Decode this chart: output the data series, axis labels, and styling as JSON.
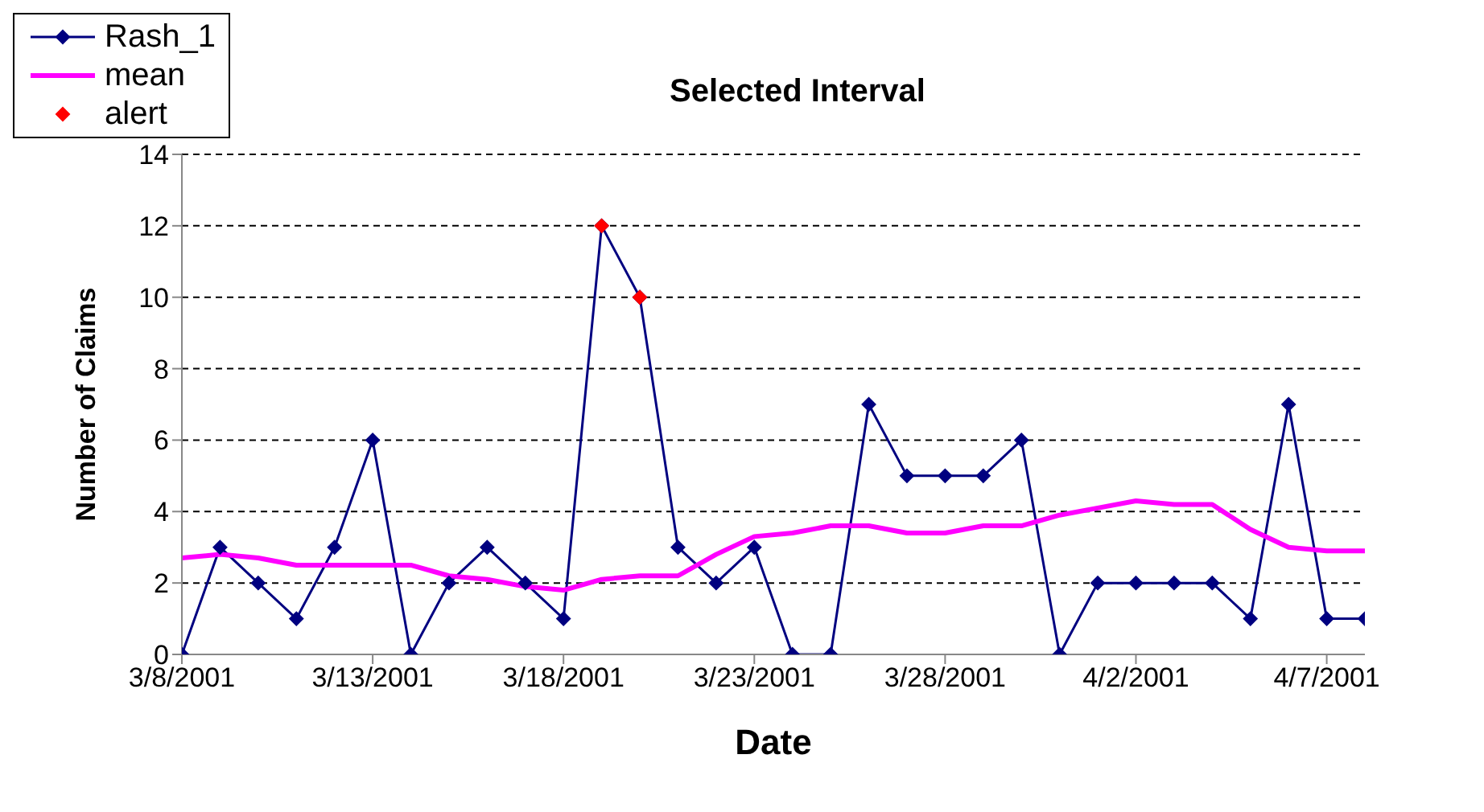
{
  "chart_data": {
    "type": "line",
    "title": "Selected Interval",
    "xlabel": "Date",
    "ylabel": "Number of Claims",
    "xlim": [
      "2001-03-08",
      "2001-04-08"
    ],
    "xticks": [
      {
        "value": "2001-03-08",
        "label": "3/8/2001"
      },
      {
        "value": "2001-03-13",
        "label": "3/13/2001"
      },
      {
        "value": "2001-03-18",
        "label": "3/18/2001"
      },
      {
        "value": "2001-03-23",
        "label": "3/23/2001"
      },
      {
        "value": "2001-03-28",
        "label": "3/28/2001"
      },
      {
        "value": "2001-04-02",
        "label": "4/2/2001"
      },
      {
        "value": "2001-04-07",
        "label": "4/7/2001"
      }
    ],
    "ylim": [
      0,
      14
    ],
    "yticks": [
      0,
      2,
      4,
      6,
      8,
      10,
      12,
      14
    ],
    "grid": "y",
    "legend": "top left",
    "series": [
      {
        "name": "Rash_1",
        "color": "#000080",
        "marker": "diamond",
        "x": [
          "2001-03-08",
          "2001-03-09",
          "2001-03-10",
          "2001-03-11",
          "2001-03-12",
          "2001-03-13",
          "2001-03-14",
          "2001-03-15",
          "2001-03-16",
          "2001-03-17",
          "2001-03-18",
          "2001-03-19",
          "2001-03-20",
          "2001-03-21",
          "2001-03-22",
          "2001-03-23",
          "2001-03-24",
          "2001-03-25",
          "2001-03-26",
          "2001-03-27",
          "2001-03-28",
          "2001-03-29",
          "2001-03-30",
          "2001-03-31",
          "2001-04-01",
          "2001-04-02",
          "2001-04-03",
          "2001-04-04",
          "2001-04-05",
          "2001-04-06",
          "2001-04-07",
          "2001-04-08"
        ],
        "values": [
          0,
          3,
          2,
          1,
          3,
          6,
          0,
          2,
          3,
          2,
          1,
          12,
          10,
          3,
          2,
          3,
          0,
          0,
          7,
          5,
          5,
          5,
          6,
          0,
          2,
          2,
          2,
          2,
          1,
          7,
          1,
          1
        ]
      },
      {
        "name": "mean",
        "color": "#ff00ff",
        "marker": "none",
        "x": [
          "2001-03-08",
          "2001-03-09",
          "2001-03-10",
          "2001-03-11",
          "2001-03-12",
          "2001-03-13",
          "2001-03-14",
          "2001-03-15",
          "2001-03-16",
          "2001-03-17",
          "2001-03-18",
          "2001-03-19",
          "2001-03-20",
          "2001-03-21",
          "2001-03-22",
          "2001-03-23",
          "2001-03-24",
          "2001-03-25",
          "2001-03-26",
          "2001-03-27",
          "2001-03-28",
          "2001-03-29",
          "2001-03-30",
          "2001-03-31",
          "2001-04-01",
          "2001-04-02",
          "2001-04-03",
          "2001-04-04",
          "2001-04-05",
          "2001-04-06",
          "2001-04-07",
          "2001-04-08"
        ],
        "values": [
          2.7,
          2.8,
          2.7,
          2.5,
          2.5,
          2.5,
          2.5,
          2.2,
          2.1,
          1.9,
          1.8,
          2.1,
          2.2,
          2.2,
          2.8,
          3.3,
          3.4,
          3.6,
          3.6,
          3.4,
          3.4,
          3.6,
          3.6,
          3.9,
          4.1,
          4.3,
          4.2,
          4.2,
          3.5,
          3.0,
          2.9,
          2.9
        ]
      },
      {
        "name": "alert",
        "type": "scatter",
        "color": "#ff0000",
        "marker": "diamond",
        "x": [
          "2001-03-19",
          "2001-03-20"
        ],
        "values": [
          12,
          10
        ]
      }
    ]
  }
}
